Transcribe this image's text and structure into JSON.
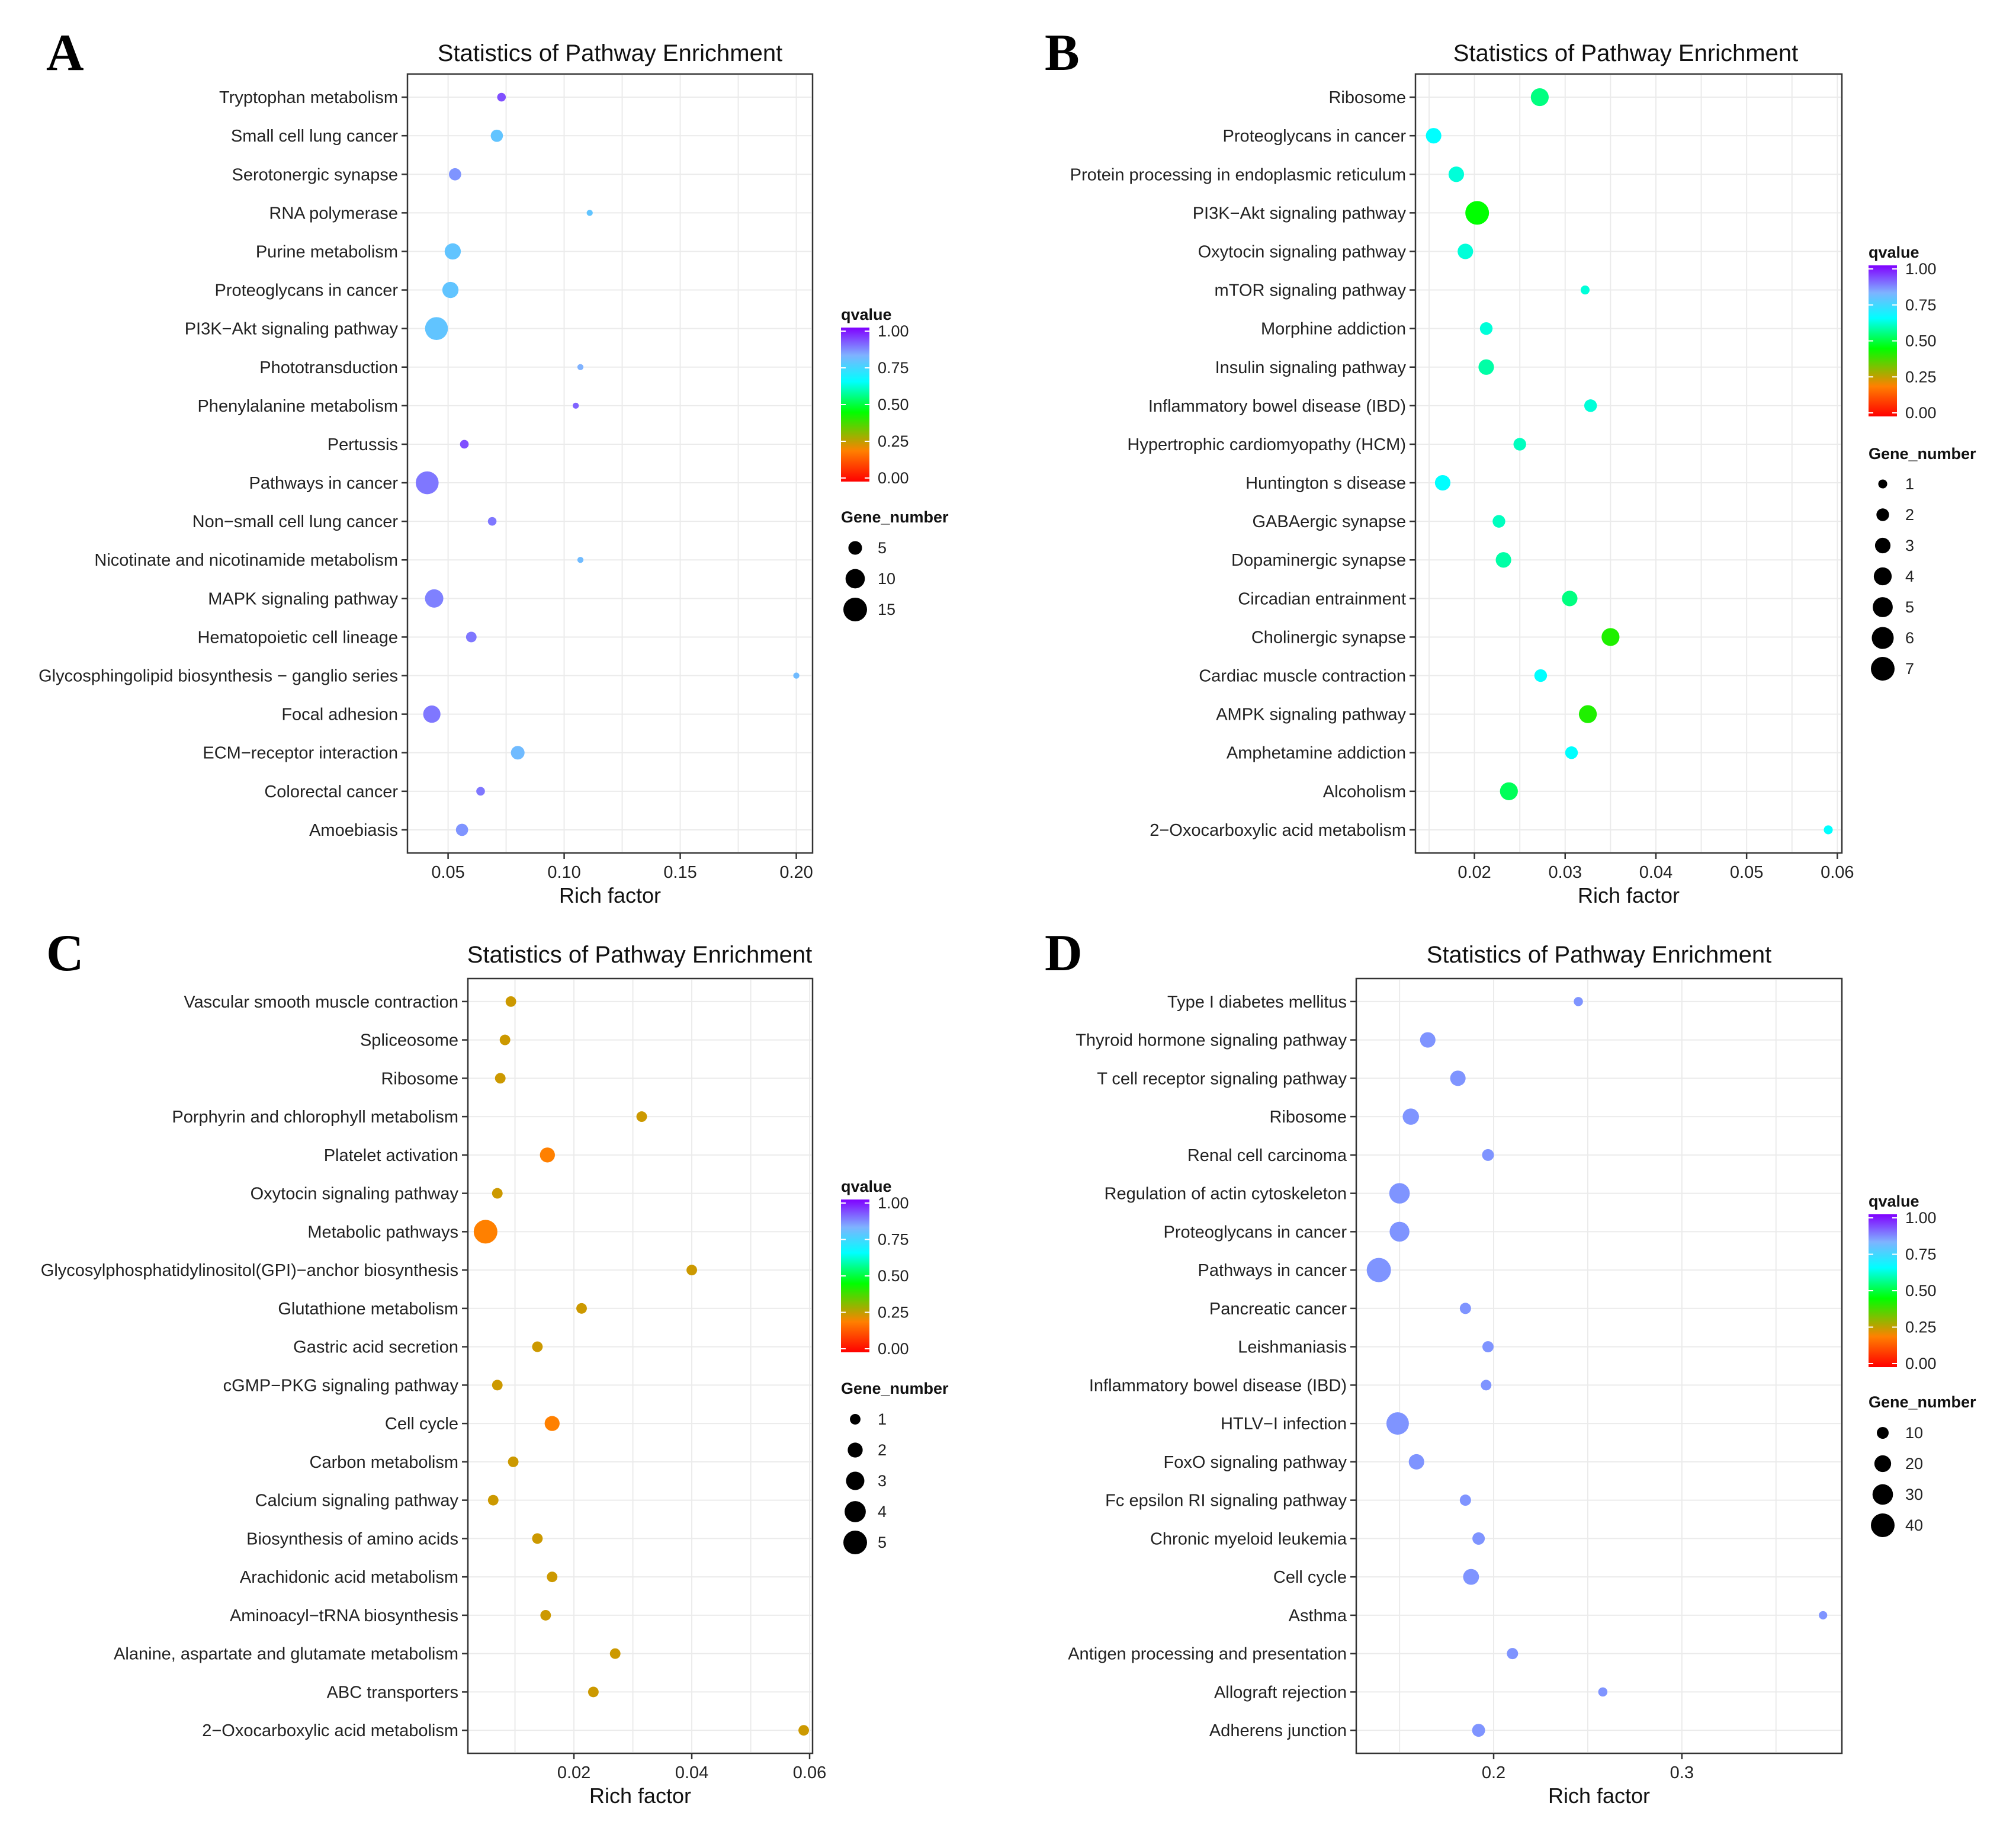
{
  "colors": {
    "qvalue_gradient": [
      "#ff0000",
      "#ff8000",
      "#00ff00",
      "#00ffff",
      "#7fb2ff",
      "#8000ff"
    ],
    "axis": "#333333",
    "grid": "#ebebeb"
  },
  "chart_data": [
    {
      "type": "scatter",
      "panel": "A",
      "title": "Statistics of Pathway Enrichment",
      "xlabel": "Rich factor",
      "ylabel": "",
      "xlim": [
        0.0325,
        0.207
      ],
      "xticks": [
        0.05,
        0.1,
        0.15,
        0.2
      ],
      "xtick_labels": [
        "0.05",
        "0.10",
        "0.15",
        "0.20"
      ],
      "color_legend": {
        "title": "qvalue",
        "ticks": [
          "1.00",
          "0.75",
          "0.50",
          "0.25",
          "0.00"
        ]
      },
      "size_legend": {
        "title": "Gene_number",
        "values": [
          5,
          10,
          15
        ],
        "labels": [
          "5",
          "10",
          "15"
        ],
        "max": 15
      },
      "categories": [
        "Tryptophan metabolism",
        "Small cell lung cancer",
        "Serotonergic synapse",
        "RNA polymerase",
        "Purine metabolism",
        "Proteoglycans in cancer",
        "PI3K−Akt signaling pathway",
        "Phototransduction",
        "Phenylalanine metabolism",
        "Pertussis",
        "Pathways in cancer",
        "Non−small cell lung cancer",
        "Nicotinate and nicotinamide metabolism",
        "MAPK signaling pathway",
        "Hematopoietic cell lineage",
        "Glycosphingolipid biosynthesis − ganglio series",
        "Focal adhesion",
        "ECM−receptor interaction",
        "Colorectal cancer",
        "Amoebiasis"
      ],
      "points": [
        {
          "x": 0.073,
          "qvalue": 0.92,
          "gene_number": 2
        },
        {
          "x": 0.071,
          "qvalue": 0.78,
          "gene_number": 4
        },
        {
          "x": 0.053,
          "qvalue": 0.85,
          "gene_number": 4
        },
        {
          "x": 0.111,
          "qvalue": 0.78,
          "gene_number": 1
        },
        {
          "x": 0.052,
          "qvalue": 0.78,
          "gene_number": 7
        },
        {
          "x": 0.051,
          "qvalue": 0.78,
          "gene_number": 7
        },
        {
          "x": 0.045,
          "qvalue": 0.78,
          "gene_number": 14
        },
        {
          "x": 0.107,
          "qvalue": 0.82,
          "gene_number": 1
        },
        {
          "x": 0.105,
          "qvalue": 0.9,
          "gene_number": 1
        },
        {
          "x": 0.057,
          "qvalue": 0.92,
          "gene_number": 2
        },
        {
          "x": 0.041,
          "qvalue": 0.88,
          "gene_number": 14
        },
        {
          "x": 0.069,
          "qvalue": 0.88,
          "gene_number": 2
        },
        {
          "x": 0.107,
          "qvalue": 0.8,
          "gene_number": 1
        },
        {
          "x": 0.044,
          "qvalue": 0.87,
          "gene_number": 9
        },
        {
          "x": 0.06,
          "qvalue": 0.88,
          "gene_number": 3
        },
        {
          "x": 0.2,
          "qvalue": 0.8,
          "gene_number": 1
        },
        {
          "x": 0.043,
          "qvalue": 0.88,
          "gene_number": 8
        },
        {
          "x": 0.08,
          "qvalue": 0.8,
          "gene_number": 5
        },
        {
          "x": 0.064,
          "qvalue": 0.88,
          "gene_number": 2
        },
        {
          "x": 0.056,
          "qvalue": 0.85,
          "gene_number": 4
        }
      ]
    },
    {
      "type": "scatter",
      "panel": "B",
      "title": "Statistics of Pathway Enrichment",
      "xlabel": "Rich factor",
      "ylabel": "",
      "xlim": [
        0.0135,
        0.0605
      ],
      "xticks": [
        0.02,
        0.03,
        0.04,
        0.05,
        0.06
      ],
      "xtick_labels": [
        "0.02",
        "0.03",
        "0.04",
        "0.05",
        "0.06"
      ],
      "color_legend": {
        "title": "qvalue",
        "ticks": [
          "1.00",
          "0.75",
          "0.50",
          "0.25",
          "0.00"
        ]
      },
      "size_legend": {
        "title": "Gene_number",
        "values": [
          1,
          2,
          3,
          4,
          5,
          6,
          7
        ],
        "labels": [
          "1",
          "2",
          "3",
          "4",
          "5",
          "6",
          "7"
        ],
        "max": 7
      },
      "categories": [
        "Ribosome",
        "Proteoglycans in cancer",
        "Protein processing in endoplasmic reticulum",
        "PI3K−Akt signaling pathway",
        "Oxytocin signaling pathway",
        "mTOR signaling pathway",
        "Morphine addiction",
        "Insulin signaling pathway",
        "Inflammatory bowel disease (IBD)",
        "Hypertrophic cardiomyopathy (HCM)",
        "Huntington s disease",
        "GABAergic synapse",
        "Dopaminergic synapse",
        "Circadian entrainment",
        "Cholinergic synapse",
        "Cardiac muscle contraction",
        "AMPK signaling pathway",
        "Amphetamine addiction",
        "Alcoholism",
        "2−Oxocarboxylic acid metabolism"
      ],
      "points": [
        {
          "x": 0.0272,
          "qvalue": 0.55,
          "gene_number": 4
        },
        {
          "x": 0.0155,
          "qvalue": 0.65,
          "gene_number": 3
        },
        {
          "x": 0.018,
          "qvalue": 0.62,
          "gene_number": 3
        },
        {
          "x": 0.0203,
          "qvalue": 0.45,
          "gene_number": 7
        },
        {
          "x": 0.019,
          "qvalue": 0.62,
          "gene_number": 3
        },
        {
          "x": 0.0322,
          "qvalue": 0.62,
          "gene_number": 1
        },
        {
          "x": 0.0213,
          "qvalue": 0.62,
          "gene_number": 2
        },
        {
          "x": 0.0213,
          "qvalue": 0.58,
          "gene_number": 3
        },
        {
          "x": 0.0328,
          "qvalue": 0.62,
          "gene_number": 2
        },
        {
          "x": 0.025,
          "qvalue": 0.6,
          "gene_number": 2
        },
        {
          "x": 0.0165,
          "qvalue": 0.65,
          "gene_number": 3
        },
        {
          "x": 0.0227,
          "qvalue": 0.6,
          "gene_number": 2
        },
        {
          "x": 0.0232,
          "qvalue": 0.58,
          "gene_number": 3
        },
        {
          "x": 0.0305,
          "qvalue": 0.55,
          "gene_number": 3
        },
        {
          "x": 0.035,
          "qvalue": 0.42,
          "gene_number": 4
        },
        {
          "x": 0.0273,
          "qvalue": 0.65,
          "gene_number": 2
        },
        {
          "x": 0.0325,
          "qvalue": 0.42,
          "gene_number": 4
        },
        {
          "x": 0.0307,
          "qvalue": 0.65,
          "gene_number": 2
        },
        {
          "x": 0.0238,
          "qvalue": 0.52,
          "gene_number": 4
        },
        {
          "x": 0.059,
          "qvalue": 0.65,
          "gene_number": 1
        }
      ]
    },
    {
      "type": "scatter",
      "panel": "C",
      "title": "Statistics of Pathway Enrichment",
      "xlabel": "Rich factor",
      "ylabel": "",
      "xlim": [
        0.002,
        0.0605
      ],
      "xticks": [
        0.02,
        0.04,
        0.06
      ],
      "xtick_labels": [
        "0.02",
        "0.04",
        "0.06"
      ],
      "color_legend": {
        "title": "qvalue",
        "ticks": [
          "1.00",
          "0.75",
          "0.50",
          "0.25",
          "0.00"
        ]
      },
      "size_legend": {
        "title": "Gene_number",
        "values": [
          1,
          2,
          3,
          4,
          5
        ],
        "labels": [
          "1",
          "2",
          "3",
          "4",
          "5"
        ],
        "max": 5
      },
      "categories": [
        "Vascular smooth muscle contraction",
        "Spliceosome",
        "Ribosome",
        "Porphyrin and chlorophyll metabolism",
        "Platelet activation",
        "Oxytocin signaling pathway",
        "Metabolic pathways",
        "Glycosylphosphatidylinositol(GPI)−anchor biosynthesis",
        "Glutathione metabolism",
        "Gastric acid secretion",
        "cGMP−PKG signaling pathway",
        "Cell cycle",
        "Carbon metabolism",
        "Calcium signaling pathway",
        "Biosynthesis of amino acids",
        "Arachidonic acid metabolism",
        "Aminoacyl−tRNA biosynthesis",
        "Alanine, aspartate and glutamate metabolism",
        "ABC transporters",
        "2−Oxocarboxylic acid metabolism"
      ],
      "points": [
        {
          "x": 0.0093,
          "qvalue": 0.25,
          "gene_number": 1
        },
        {
          "x": 0.0083,
          "qvalue": 0.25,
          "gene_number": 1
        },
        {
          "x": 0.0075,
          "qvalue": 0.25,
          "gene_number": 1
        },
        {
          "x": 0.0315,
          "qvalue": 0.25,
          "gene_number": 1
        },
        {
          "x": 0.0155,
          "qvalue": 0.2,
          "gene_number": 2
        },
        {
          "x": 0.007,
          "qvalue": 0.25,
          "gene_number": 1
        },
        {
          "x": 0.005,
          "qvalue": 0.2,
          "gene_number": 5
        },
        {
          "x": 0.04,
          "qvalue": 0.25,
          "gene_number": 1
        },
        {
          "x": 0.0213,
          "qvalue": 0.25,
          "gene_number": 1
        },
        {
          "x": 0.0138,
          "qvalue": 0.25,
          "gene_number": 1
        },
        {
          "x": 0.007,
          "qvalue": 0.25,
          "gene_number": 1
        },
        {
          "x": 0.0163,
          "qvalue": 0.2,
          "gene_number": 2
        },
        {
          "x": 0.0097,
          "qvalue": 0.25,
          "gene_number": 1
        },
        {
          "x": 0.0063,
          "qvalue": 0.25,
          "gene_number": 1
        },
        {
          "x": 0.0138,
          "qvalue": 0.25,
          "gene_number": 1
        },
        {
          "x": 0.0163,
          "qvalue": 0.25,
          "gene_number": 1
        },
        {
          "x": 0.0152,
          "qvalue": 0.25,
          "gene_number": 1
        },
        {
          "x": 0.027,
          "qvalue": 0.25,
          "gene_number": 1
        },
        {
          "x": 0.0233,
          "qvalue": 0.25,
          "gene_number": 1
        },
        {
          "x": 0.059,
          "qvalue": 0.25,
          "gene_number": 1
        }
      ]
    },
    {
      "type": "scatter",
      "panel": "D",
      "title": "Statistics of Pathway Enrichment",
      "xlabel": "Rich factor",
      "ylabel": "",
      "xlim": [
        0.127,
        0.385
      ],
      "xticks": [
        0.2,
        0.3
      ],
      "xtick_labels": [
        "0.2",
        "0.3"
      ],
      "color_legend": {
        "title": "qvalue",
        "ticks": [
          "1.00",
          "0.75",
          "0.50",
          "0.25",
          "0.00"
        ]
      },
      "size_legend": {
        "title": "Gene_number",
        "values": [
          10,
          20,
          30,
          40
        ],
        "labels": [
          "10",
          "20",
          "30",
          "40"
        ],
        "max": 40
      },
      "categories": [
        "Type I diabetes mellitus",
        "Thyroid hormone signaling pathway",
        "T cell receptor signaling pathway",
        "Ribosome",
        "Renal cell carcinoma",
        "Regulation of actin cytoskeleton",
        "Proteoglycans in cancer",
        "Pathways in cancer",
        "Pancreatic cancer",
        "Leishmaniasis",
        "Inflammatory bowel disease (IBD)",
        "HTLV−I infection",
        "FoxO signaling pathway",
        "Fc epsilon RI signaling pathway",
        "Chronic myeloid leukemia",
        "Cell cycle",
        "Asthma",
        "Antigen processing and presentation",
        "Allograft rejection",
        "Adherens junction"
      ],
      "points": [
        {
          "x": 0.245,
          "qvalue": 0.85,
          "gene_number": 6
        },
        {
          "x": 0.165,
          "qvalue": 0.85,
          "gene_number": 17
        },
        {
          "x": 0.181,
          "qvalue": 0.85,
          "gene_number": 17
        },
        {
          "x": 0.156,
          "qvalue": 0.85,
          "gene_number": 19
        },
        {
          "x": 0.197,
          "qvalue": 0.85,
          "gene_number": 10
        },
        {
          "x": 0.15,
          "qvalue": 0.85,
          "gene_number": 30
        },
        {
          "x": 0.15,
          "qvalue": 0.85,
          "gene_number": 28
        },
        {
          "x": 0.139,
          "qvalue": 0.85,
          "gene_number": 42
        },
        {
          "x": 0.185,
          "qvalue": 0.85,
          "gene_number": 9
        },
        {
          "x": 0.197,
          "qvalue": 0.85,
          "gene_number": 9
        },
        {
          "x": 0.196,
          "qvalue": 0.85,
          "gene_number": 8
        },
        {
          "x": 0.149,
          "qvalue": 0.85,
          "gene_number": 36
        },
        {
          "x": 0.159,
          "qvalue": 0.85,
          "gene_number": 17
        },
        {
          "x": 0.185,
          "qvalue": 0.85,
          "gene_number": 9
        },
        {
          "x": 0.192,
          "qvalue": 0.85,
          "gene_number": 11
        },
        {
          "x": 0.188,
          "qvalue": 0.85,
          "gene_number": 18
        },
        {
          "x": 0.375,
          "qvalue": 0.85,
          "gene_number": 5
        },
        {
          "x": 0.21,
          "qvalue": 0.85,
          "gene_number": 9
        },
        {
          "x": 0.258,
          "qvalue": 0.85,
          "gene_number": 6
        },
        {
          "x": 0.192,
          "qvalue": 0.85,
          "gene_number": 12
        }
      ]
    }
  ]
}
